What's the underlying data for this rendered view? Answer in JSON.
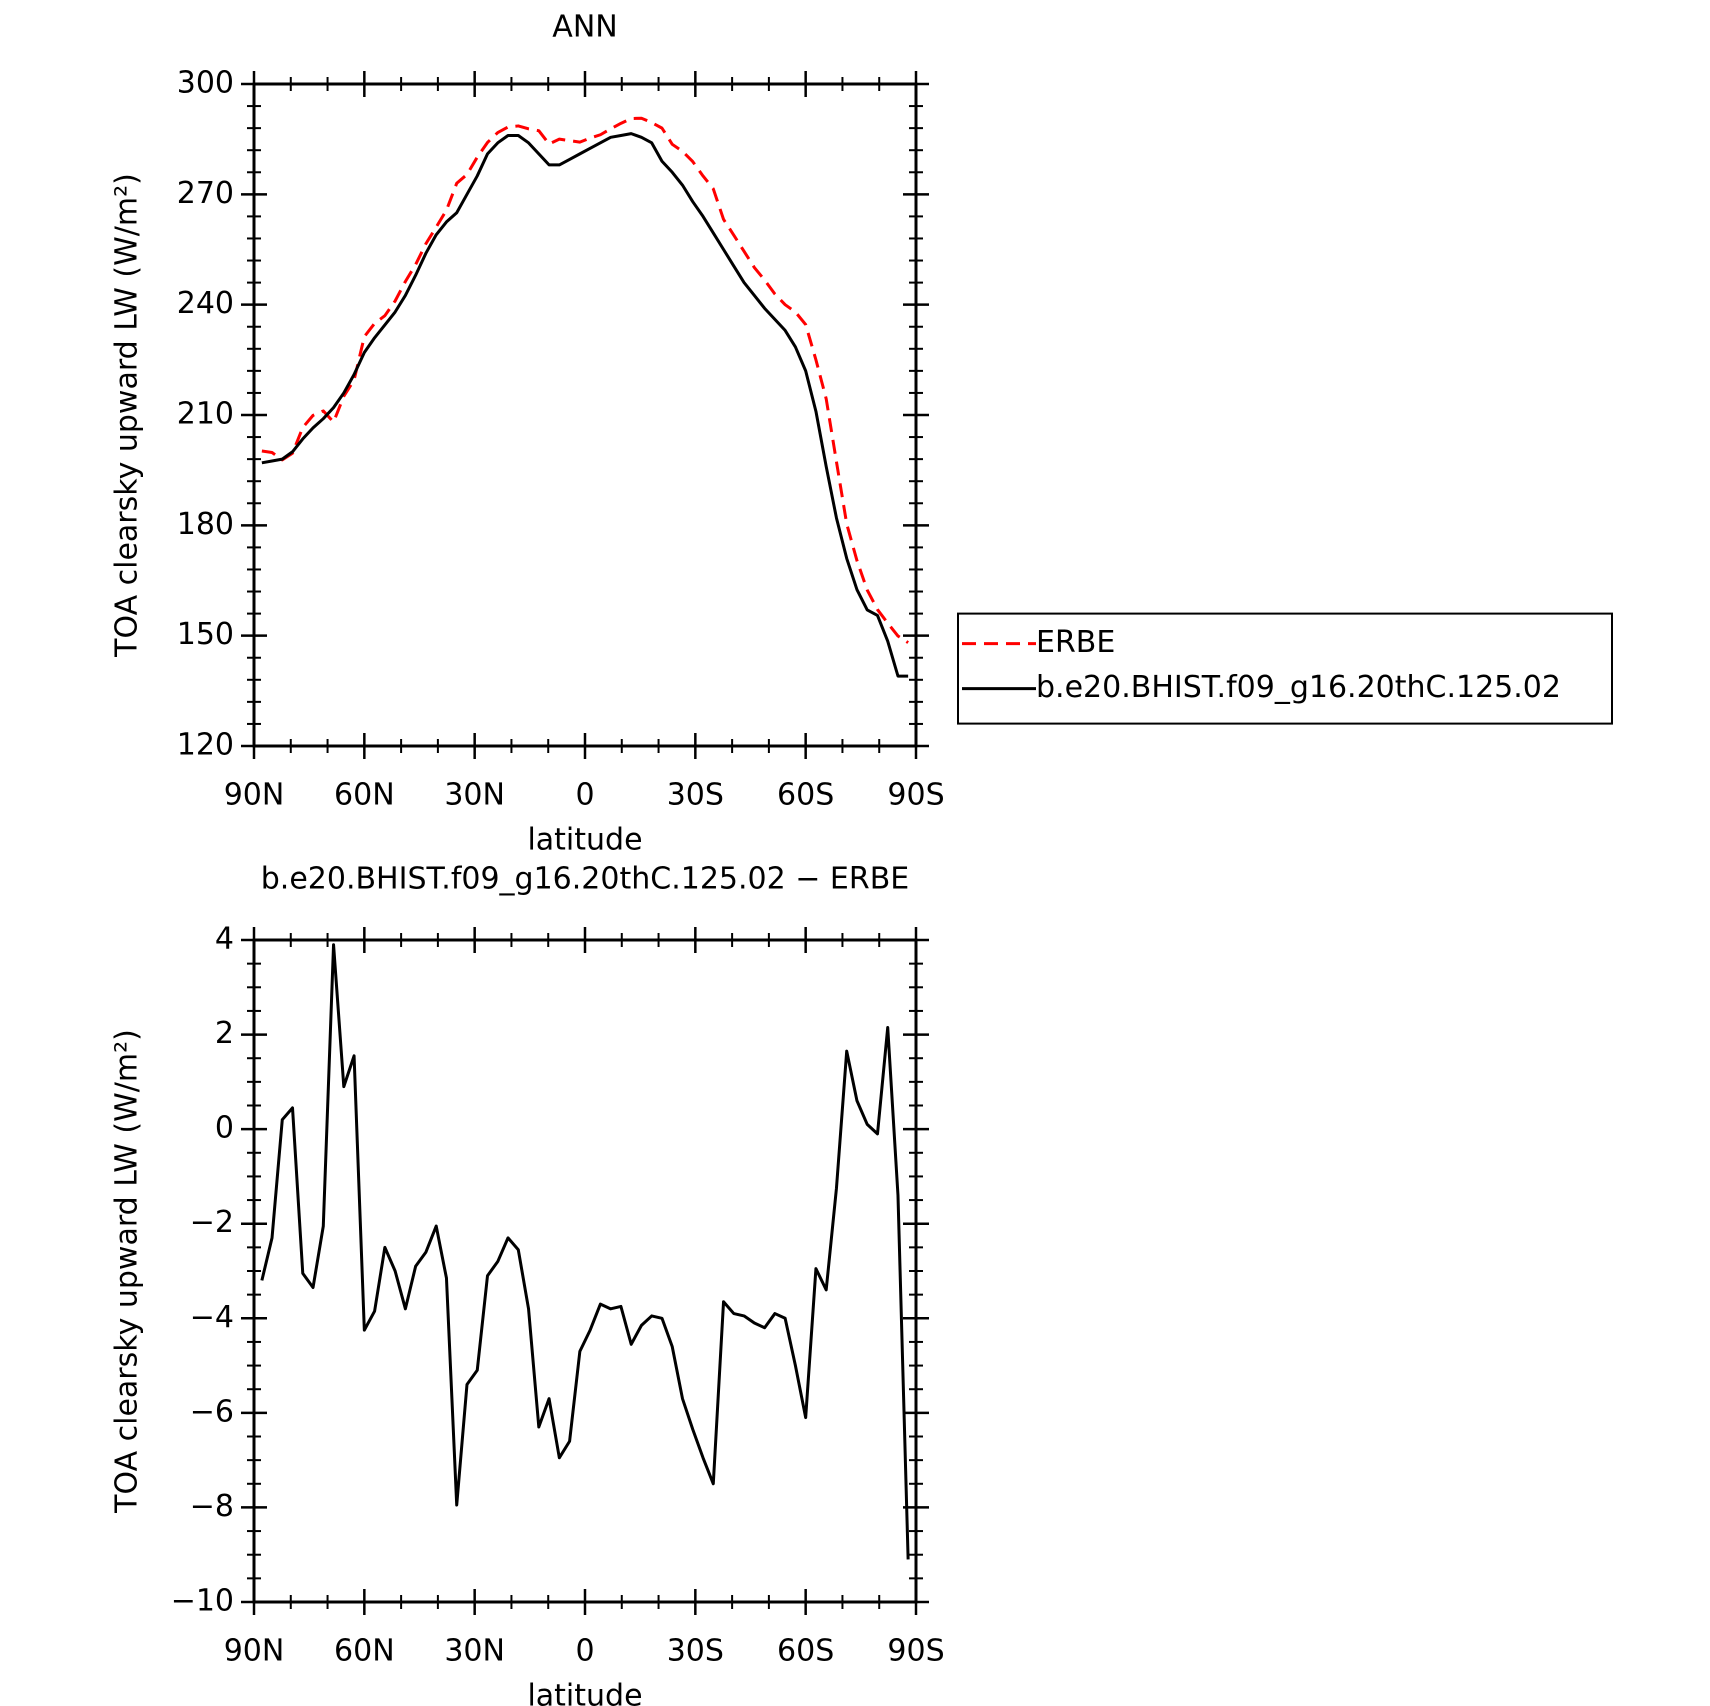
{
  "chart_data": [
    {
      "type": "line",
      "title": "ANN",
      "xlabel": "latitude",
      "ylabel": "TOA clearsky upward LW (W/m²)",
      "x": [
        87.86,
        85.1,
        82.31,
        79.53,
        76.74,
        73.95,
        71.16,
        68.37,
        65.58,
        62.79,
        60.0,
        57.21,
        54.42,
        51.63,
        48.84,
        46.05,
        43.25,
        40.46,
        37.67,
        34.88,
        32.09,
        29.3,
        26.51,
        23.72,
        20.93,
        18.14,
        15.35,
        12.56,
        9.77,
        6.98,
        4.19,
        1.4,
        -1.4,
        -4.19,
        -6.98,
        -9.77,
        -12.56,
        -15.35,
        -18.14,
        -20.93,
        -23.72,
        -26.51,
        -29.3,
        -32.09,
        -34.88,
        -37.67,
        -40.46,
        -43.25,
        -46.05,
        -48.84,
        -51.63,
        -54.42,
        -57.21,
        -60.0,
        -62.79,
        -65.58,
        -68.37,
        -71.16,
        -73.95,
        -76.74,
        -79.53,
        -82.31,
        -85.1,
        -87.86
      ],
      "xlim": [
        90,
        -90
      ],
      "xticks": [
        {
          "value": 90,
          "label": "90N"
        },
        {
          "value": 60,
          "label": "60N"
        },
        {
          "value": 30,
          "label": "30N"
        },
        0,
        {
          "value": -30,
          "label": "30S"
        },
        {
          "value": -60,
          "label": "60S"
        },
        {
          "value": -90,
          "label": "90S"
        }
      ],
      "ylim": [
        120,
        300
      ],
      "yticks": [
        120,
        150,
        180,
        210,
        240,
        270,
        300
      ],
      "legend": "right",
      "series": [
        {
          "name": "ERBE",
          "color": "#ff0000",
          "linestyle": "dashed",
          "values": [
            200.2,
            199.8,
            197.8,
            199.6,
            206.6,
            209.9,
            211.1,
            208.1,
            215.1,
            219.5,
            231.3,
            234.9,
            237,
            241,
            246.3,
            250.9,
            256.6,
            261.1,
            265.7,
            273,
            275.4,
            280.1,
            284.1,
            286.8,
            288.3,
            288.6,
            287.8,
            287.3,
            283.7,
            285,
            284.6,
            284.2,
            285.3,
            286.2,
            287.8,
            289.3,
            290.6,
            290.7,
            289.5,
            288,
            283.6,
            281.7,
            278.9,
            275,
            271.5,
            263.2,
            258.9,
            254.5,
            250.1,
            246.7,
            242.9,
            240,
            238,
            234.6,
            225,
            214.4,
            197.3,
            180.4,
            170.4,
            162.4,
            157.1,
            153.4,
            149.9,
            148.1
          ]
        },
        {
          "name": "b.e20.BHIST.f09_g16.20thC.125.02",
          "color": "#000000",
          "linestyle": "solid",
          "values": [
            197,
            197.5,
            198,
            200,
            203.5,
            206.5,
            209,
            212,
            216,
            221,
            227,
            231,
            234.5,
            238,
            242.5,
            248,
            254,
            259,
            262.5,
            265,
            270,
            275,
            281,
            284,
            286,
            286,
            284,
            281,
            278,
            278,
            279.5,
            281,
            282.5,
            284,
            285.5,
            286,
            286.5,
            285.5,
            284,
            279,
            276,
            272.5,
            268,
            264,
            259.5,
            255,
            250.5,
            246,
            242.5,
            239,
            236,
            233,
            228.5,
            222,
            211,
            196,
            182,
            171,
            162.5,
            157,
            155.5,
            148.5,
            139,
            139
          ]
        }
      ]
    },
    {
      "type": "line",
      "title": "b.e20.BHIST.f09_g16.20thC.125.02 − ERBE",
      "xlabel": "latitude",
      "ylabel": "TOA clearsky upward LW (W/m²)",
      "x": [
        87.86,
        85.1,
        82.31,
        79.53,
        76.74,
        73.95,
        71.16,
        68.37,
        65.58,
        62.79,
        60.0,
        57.21,
        54.42,
        51.63,
        48.84,
        46.05,
        43.25,
        40.46,
        37.67,
        34.88,
        32.09,
        29.3,
        26.51,
        23.72,
        20.93,
        18.14,
        15.35,
        12.56,
        9.77,
        6.98,
        4.19,
        1.4,
        -1.4,
        -4.19,
        -6.98,
        -9.77,
        -12.56,
        -15.35,
        -18.14,
        -20.93,
        -23.72,
        -26.51,
        -29.3,
        -32.09,
        -34.88,
        -37.67,
        -40.46,
        -43.25,
        -46.05,
        -48.84,
        -51.63,
        -54.42,
        -57.21,
        -60.0,
        -62.79,
        -65.58,
        -68.37,
        -71.16,
        -73.95,
        -76.74,
        -79.53,
        -82.31,
        -85.1,
        -87.86
      ],
      "xlim": [
        90,
        -90
      ],
      "xticks": [
        {
          "value": 90,
          "label": "90N"
        },
        {
          "value": 60,
          "label": "60N"
        },
        {
          "value": 30,
          "label": "30N"
        },
        0,
        {
          "value": -30,
          "label": "30S"
        },
        {
          "value": -60,
          "label": "60S"
        },
        {
          "value": -90,
          "label": "90S"
        }
      ],
      "ylim": [
        -10,
        4
      ],
      "yticks": [
        {
          "value": -10,
          "label": "−10"
        },
        {
          "value": -8,
          "label": "−8"
        },
        {
          "value": -6,
          "label": "−6"
        },
        {
          "value": -4,
          "label": "−4"
        },
        {
          "value": -2,
          "label": "−2"
        },
        0,
        2,
        4
      ],
      "series": [
        {
          "color": "#000000",
          "linestyle": "solid",
          "values": [
            -3.2,
            -2.3,
            0.2,
            0.45,
            -3.05,
            -3.35,
            -2.05,
            3.9,
            0.9,
            1.55,
            -4.25,
            -3.85,
            -2.5,
            -3.0,
            -3.8,
            -2.9,
            -2.6,
            -2.05,
            -3.15,
            -7.95,
            -5.4,
            -5.1,
            -3.1,
            -2.8,
            -2.3,
            -2.55,
            -3.8,
            -6.3,
            -5.7,
            -6.95,
            -6.6,
            -4.7,
            -4.25,
            -3.7,
            -3.8,
            -3.75,
            -4.55,
            -4.15,
            -3.95,
            -4.0,
            -4.6,
            -5.7,
            -6.35,
            -6.95,
            -7.5,
            -3.65,
            -3.9,
            -3.95,
            -4.1,
            -4.2,
            -3.9,
            -4.0,
            -5.0,
            -6.1,
            -2.95,
            -3.4,
            -1.25,
            1.65,
            0.6,
            0.1,
            -0.1,
            2.15,
            -1.4,
            -9.1
          ]
        }
      ]
    }
  ]
}
